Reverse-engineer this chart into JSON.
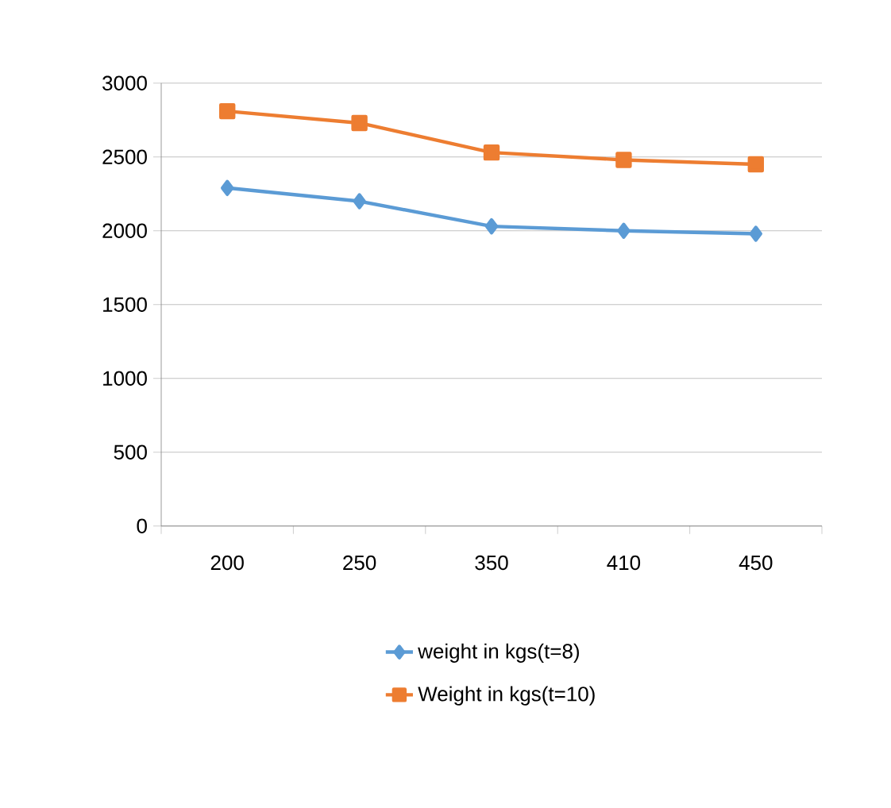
{
  "chart_data": {
    "type": "line",
    "categories": [
      "200",
      "250",
      "350",
      "410",
      "450"
    ],
    "series": [
      {
        "name": "weight in kgs(t=8)",
        "color": "#5b9bd5",
        "marker": "diamond",
        "values": [
          2290,
          2200,
          2030,
          2000,
          1980
        ]
      },
      {
        "name": "Weight in kgs(t=10)",
        "color": "#ed7d31",
        "marker": "square",
        "values": [
          2810,
          2730,
          2530,
          2480,
          2450
        ]
      }
    ],
    "ylim": [
      0,
      3000
    ],
    "yticks": [
      0,
      500,
      1000,
      1500,
      2000,
      2500,
      3000
    ],
    "grid": "y",
    "legend": "bottom",
    "line_style": "solid"
  }
}
